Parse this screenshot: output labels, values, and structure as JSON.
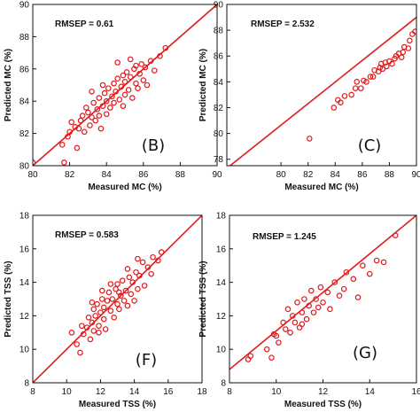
{
  "chart_data": [
    {
      "type": "scatter",
      "panel_label": "(B)",
      "annotation": "RMSEP = 0.61",
      "xlabel": "Measured MC (%)",
      "ylabel": "Predicted MC (%)",
      "xlim": [
        80,
        90
      ],
      "ylim": [
        80,
        90
      ],
      "xticks": [
        "80",
        "82",
        "84",
        "86",
        "88",
        "90"
      ],
      "yticks": [
        "80",
        "82",
        "84",
        "86",
        "88",
        "90"
      ],
      "fit_line": [
        [
          80,
          80
        ],
        [
          90,
          90
        ]
      ],
      "color": "#e31a1c",
      "points": [
        [
          80.0,
          80.2
        ],
        [
          81.7,
          80.2
        ],
        [
          81.6,
          81.3
        ],
        [
          81.9,
          81.8
        ],
        [
          82.0,
          82.1
        ],
        [
          82.3,
          82.4
        ],
        [
          82.1,
          82.7
        ],
        [
          82.5,
          82.3
        ],
        [
          82.4,
          81.1
        ],
        [
          82.6,
          82.8
        ],
        [
          82.8,
          82.1
        ],
        [
          83.0,
          83.3
        ],
        [
          82.9,
          83.6
        ],
        [
          83.1,
          82.5
        ],
        [
          83.2,
          83.0
        ],
        [
          83.3,
          83.9
        ],
        [
          83.4,
          82.8
        ],
        [
          83.5,
          83.5
        ],
        [
          83.6,
          84.2
        ],
        [
          83.6,
          83.1
        ],
        [
          83.7,
          82.3
        ],
        [
          83.8,
          83.7
        ],
        [
          83.9,
          84.5
        ],
        [
          84.0,
          83.2
        ],
        [
          84.0,
          84.0
        ],
        [
          84.1,
          84.8
        ],
        [
          84.2,
          83.6
        ],
        [
          84.3,
          84.3
        ],
        [
          84.4,
          85.1
        ],
        [
          84.4,
          83.9
        ],
        [
          84.5,
          84.6
        ],
        [
          84.6,
          85.4
        ],
        [
          84.7,
          84.1
        ],
        [
          84.8,
          84.9
        ],
        [
          84.9,
          83.7
        ],
        [
          85.0,
          85.2
        ],
        [
          85.0,
          84.4
        ],
        [
          85.1,
          85.8
        ],
        [
          85.2,
          84.7
        ],
        [
          85.3,
          85.5
        ],
        [
          85.4,
          84.2
        ],
        [
          85.5,
          86.0
        ],
        [
          85.6,
          85.1
        ],
        [
          85.7,
          84.8
        ],
        [
          85.8,
          85.7
        ],
        [
          85.9,
          86.3
        ],
        [
          86.0,
          85.3
        ],
        [
          86.1,
          86.1
        ],
        [
          86.2,
          85.0
        ],
        [
          86.4,
          86.5
        ],
        [
          86.6,
          85.9
        ],
        [
          86.9,
          86.8
        ],
        [
          87.2,
          87.3
        ],
        [
          83.2,
          84.6
        ],
        [
          84.6,
          86.4
        ],
        [
          85.3,
          86.6
        ],
        [
          83.8,
          85.0
        ],
        [
          82.7,
          83.1
        ],
        [
          84.9,
          85.6
        ],
        [
          85.6,
          86.2
        ]
      ]
    },
    {
      "type": "scatter",
      "panel_label": "(C)",
      "annotation": "RMSEP = 2.532",
      "xlabel": "Measured MC (%)",
      "ylabel": "Predicted MC (%)",
      "xlim": [
        76,
        90
      ],
      "ylim": [
        77.5,
        90
      ],
      "xticks": [
        "80",
        "82",
        "84",
        "86",
        "88",
        "90"
      ],
      "xtick_values": [
        80,
        82,
        84,
        86,
        88,
        90
      ],
      "yticks": [
        "78",
        "80",
        "82",
        "84",
        "86",
        "88",
        "90"
      ],
      "ytick_values": [
        78,
        80,
        82,
        84,
        86,
        88,
        90
      ],
      "fit_line": [
        [
          76,
          77.3
        ],
        [
          90,
          89.0
        ]
      ],
      "color": "#e31a1c",
      "points": [
        [
          82.1,
          79.6
        ],
        [
          83.9,
          82.0
        ],
        [
          84.2,
          82.6
        ],
        [
          84.4,
          82.4
        ],
        [
          84.7,
          82.9
        ],
        [
          85.2,
          83.0
        ],
        [
          85.5,
          83.5
        ],
        [
          85.6,
          84.0
        ],
        [
          85.9,
          83.5
        ],
        [
          86.1,
          84.1
        ],
        [
          86.3,
          84.0
        ],
        [
          86.6,
          84.4
        ],
        [
          86.8,
          84.4
        ],
        [
          86.9,
          84.9
        ],
        [
          87.2,
          84.8
        ],
        [
          87.3,
          85.1
        ],
        [
          87.4,
          85.4
        ],
        [
          87.5,
          85.0
        ],
        [
          87.7,
          85.5
        ],
        [
          87.8,
          85.2
        ],
        [
          88.0,
          85.6
        ],
        [
          88.2,
          85.4
        ],
        [
          88.4,
          85.8
        ],
        [
          88.5,
          86.0
        ],
        [
          88.7,
          86.2
        ],
        [
          88.9,
          85.9
        ],
        [
          89.0,
          86.3
        ],
        [
          89.1,
          86.7
        ],
        [
          89.4,
          86.6
        ],
        [
          89.5,
          87.2
        ],
        [
          89.7,
          87.7
        ],
        [
          89.9,
          87.9
        ]
      ]
    },
    {
      "type": "scatter",
      "panel_label": "(F)",
      "annotation": "RMSEP = 0.583",
      "xlabel": "Measured TSS (%)",
      "ylabel": "Predicted TSS (%)",
      "xlim": [
        8,
        18
      ],
      "ylim": [
        8,
        18
      ],
      "xticks": [
        "8",
        "10",
        "12",
        "14",
        "16",
        "18"
      ],
      "yticks": [
        "8",
        "10",
        "12",
        "14",
        "16",
        "18"
      ],
      "fit_line": [
        [
          8,
          8
        ],
        [
          18,
          18
        ]
      ],
      "color": "#e31a1c",
      "points": [
        [
          10.3,
          11.0
        ],
        [
          10.6,
          10.3
        ],
        [
          10.8,
          9.8
        ],
        [
          10.9,
          11.4
        ],
        [
          11.0,
          10.9
        ],
        [
          11.2,
          11.3
        ],
        [
          11.3,
          11.9
        ],
        [
          11.4,
          10.6
        ],
        [
          11.5,
          11.6
        ],
        [
          11.6,
          12.4
        ],
        [
          11.6,
          11.1
        ],
        [
          11.7,
          12.0
        ],
        [
          11.8,
          12.7
        ],
        [
          11.9,
          11.4
        ],
        [
          12.0,
          12.2
        ],
        [
          12.1,
          13.0
        ],
        [
          12.2,
          11.8
        ],
        [
          12.2,
          12.5
        ],
        [
          12.3,
          11.2
        ],
        [
          12.4,
          12.9
        ],
        [
          12.5,
          13.4
        ],
        [
          12.6,
          12.3
        ],
        [
          12.7,
          13.0
        ],
        [
          12.8,
          11.9
        ],
        [
          12.9,
          13.6
        ],
        [
          13.0,
          12.7
        ],
        [
          13.0,
          13.9
        ],
        [
          13.1,
          12.4
        ],
        [
          13.2,
          13.2
        ],
        [
          13.3,
          14.1
        ],
        [
          13.4,
          12.9
        ],
        [
          13.5,
          13.5
        ],
        [
          13.6,
          12.6
        ],
        [
          13.7,
          14.3
        ],
        [
          13.8,
          13.3
        ],
        [
          13.9,
          14.0
        ],
        [
          14.0,
          12.9
        ],
        [
          14.1,
          14.6
        ],
        [
          14.2,
          13.6
        ],
        [
          14.3,
          14.4
        ],
        [
          14.5,
          15.2
        ],
        [
          14.6,
          13.8
        ],
        [
          14.8,
          14.9
        ],
        [
          15.0,
          14.5
        ],
        [
          15.1,
          15.5
        ],
        [
          15.4,
          15.3
        ],
        [
          15.6,
          15.8
        ],
        [
          11.9,
          11.0
        ],
        [
          12.1,
          13.5
        ],
        [
          13.1,
          13.4
        ],
        [
          14.2,
          15.4
        ],
        [
          12.6,
          13.9
        ],
        [
          13.6,
          14.8
        ],
        [
          11.5,
          12.8
        ]
      ]
    },
    {
      "type": "scatter",
      "panel_label": "(G)",
      "annotation": "RMSEP = 1.245",
      "xlabel": "Measured TSS (%)",
      "ylabel": "Predicted TSS (%)",
      "xlim": [
        8,
        16
      ],
      "ylim": [
        8,
        18
      ],
      "xticks": [
        "8",
        "10",
        "12",
        "14",
        "16"
      ],
      "yticks": [
        "8",
        "10",
        "12",
        "14",
        "16",
        "18"
      ],
      "fit_line": [
        [
          8,
          8.8
        ],
        [
          16,
          18.0
        ]
      ],
      "color": "#e31a1c",
      "points": [
        [
          8.8,
          9.4
        ],
        [
          8.9,
          9.6
        ],
        [
          9.6,
          10.0
        ],
        [
          9.8,
          9.5
        ],
        [
          10.0,
          10.8
        ],
        [
          10.1,
          10.4
        ],
        [
          10.3,
          11.6
        ],
        [
          10.4,
          11.2
        ],
        [
          10.5,
          12.4
        ],
        [
          10.6,
          11.0
        ],
        [
          10.7,
          12.0
        ],
        [
          10.8,
          11.6
        ],
        [
          10.9,
          12.8
        ],
        [
          11.0,
          11.3
        ],
        [
          11.1,
          12.2
        ],
        [
          11.2,
          13.0
        ],
        [
          11.3,
          11.8
        ],
        [
          11.4,
          12.6
        ],
        [
          11.5,
          13.5
        ],
        [
          11.6,
          12.2
        ],
        [
          11.7,
          13.0
        ],
        [
          11.8,
          12.5
        ],
        [
          11.9,
          13.7
        ],
        [
          12.0,
          12.8
        ],
        [
          12.2,
          13.4
        ],
        [
          12.3,
          12.4
        ],
        [
          12.5,
          14.0
        ],
        [
          12.7,
          13.2
        ],
        [
          12.9,
          13.6
        ],
        [
          13.0,
          14.6
        ],
        [
          13.3,
          14.2
        ],
        [
          13.5,
          13.1
        ],
        [
          13.7,
          15.0
        ],
        [
          14.0,
          14.5
        ],
        [
          14.3,
          15.3
        ],
        [
          14.6,
          15.2
        ],
        [
          15.1,
          16.8
        ],
        [
          9.9,
          10.9
        ],
        [
          11.1,
          11.5
        ]
      ]
    }
  ]
}
